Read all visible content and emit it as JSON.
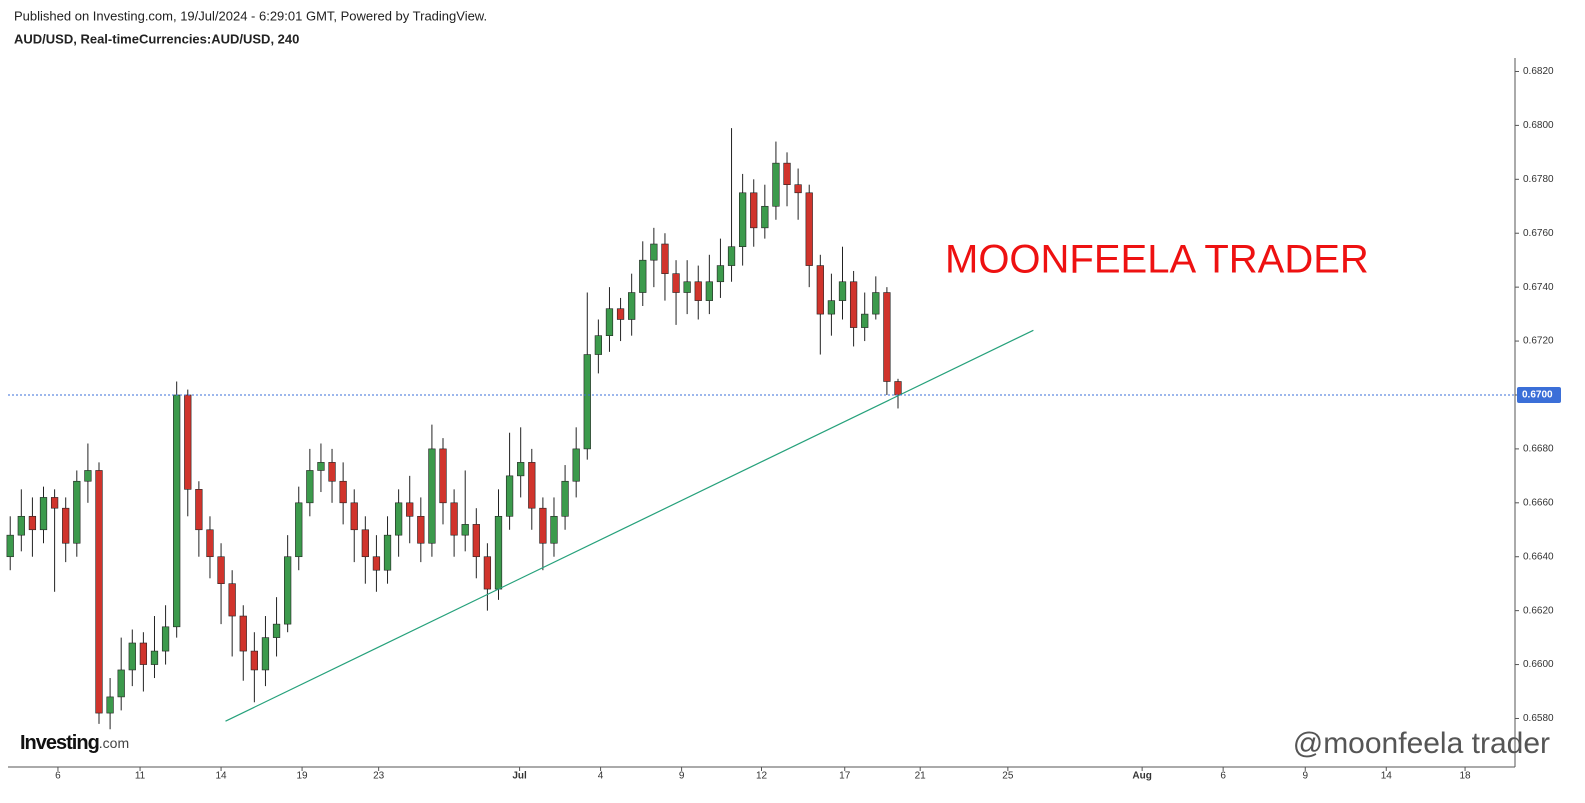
{
  "chart_data": {
    "type": "candlestick",
    "published": "Published on Investing.com, 19/Jul/2024 - 6:29:01 GMT, Powered by TradingView.",
    "title": "AUD/USD, Real-timeCurrencies:AUD/USD, 240",
    "watermark": "MOONFEELA TRADER",
    "logo": {
      "brand": "Investing",
      "suffix": ".com"
    },
    "credit": "@moonfeela trader",
    "up_color": "#3c9a4c",
    "down_color": "#d0342c",
    "trendline_color": "#26a17b",
    "price_line_color": "#3b6fd8",
    "open": [
      0.664,
      0.6648,
      0.6655,
      0.665,
      0.6662,
      0.6658,
      0.6645,
      0.6668,
      0.6672,
      0.6582,
      0.6588,
      0.6598,
      0.6608,
      0.66,
      0.6605,
      0.6614,
      0.67,
      0.6665,
      0.665,
      0.664,
      0.663,
      0.6618,
      0.6605,
      0.6598,
      0.661,
      0.6615,
      0.664,
      0.666,
      0.6672,
      0.6675,
      0.6668,
      0.666,
      0.665,
      0.664,
      0.6635,
      0.6648,
      0.666,
      0.6655,
      0.6645,
      0.668,
      0.666,
      0.6648,
      0.6652,
      0.664,
      0.6628,
      0.6655,
      0.667,
      0.6675,
      0.6658,
      0.6645,
      0.6655,
      0.6668,
      0.668,
      0.6715,
      0.6722,
      0.6732,
      0.6728,
      0.6738,
      0.675,
      0.6756,
      0.6745,
      0.6738,
      0.6742,
      0.6735,
      0.6742,
      0.6748,
      0.6755,
      0.6775,
      0.6762,
      0.677,
      0.6786,
      0.6778,
      0.6775,
      0.6748,
      0.673,
      0.6735,
      0.6742,
      0.6725,
      0.673,
      0.6738,
      0.6705
    ],
    "high": [
      0.6655,
      0.6665,
      0.6662,
      0.6666,
      0.6665,
      0.6662,
      0.6672,
      0.6682,
      0.6675,
      0.6595,
      0.661,
      0.6613,
      0.6612,
      0.6618,
      0.6622,
      0.6705,
      0.6702,
      0.6668,
      0.6655,
      0.6645,
      0.6635,
      0.6622,
      0.6612,
      0.6618,
      0.6625,
      0.6648,
      0.6666,
      0.668,
      0.6682,
      0.668,
      0.6675,
      0.6665,
      0.6655,
      0.6648,
      0.6655,
      0.6665,
      0.667,
      0.6662,
      0.6689,
      0.6684,
      0.6665,
      0.6672,
      0.6658,
      0.6645,
      0.6665,
      0.6686,
      0.6688,
      0.668,
      0.6662,
      0.6662,
      0.6674,
      0.6688,
      0.6738,
      0.6728,
      0.674,
      0.6736,
      0.6745,
      0.6757,
      0.6762,
      0.676,
      0.675,
      0.675,
      0.6748,
      0.6752,
      0.6758,
      0.6799,
      0.6782,
      0.678,
      0.6778,
      0.6794,
      0.679,
      0.6784,
      0.6778,
      0.6752,
      0.6745,
      0.6755,
      0.6746,
      0.6738,
      0.6744,
      0.674,
      0.6706
    ],
    "low": [
      0.6635,
      0.6642,
      0.664,
      0.6645,
      0.6627,
      0.6638,
      0.664,
      0.666,
      0.6578,
      0.6576,
      0.6583,
      0.6592,
      0.659,
      0.6595,
      0.66,
      0.661,
      0.6655,
      0.664,
      0.6632,
      0.6615,
      0.6603,
      0.6594,
      0.6586,
      0.6592,
      0.6603,
      0.6612,
      0.6635,
      0.6655,
      0.6664,
      0.666,
      0.6652,
      0.6638,
      0.663,
      0.6627,
      0.663,
      0.664,
      0.6645,
      0.6638,
      0.664,
      0.6652,
      0.664,
      0.6642,
      0.6632,
      0.662,
      0.6624,
      0.665,
      0.6662,
      0.665,
      0.6635,
      0.664,
      0.665,
      0.6662,
      0.6676,
      0.6708,
      0.6716,
      0.672,
      0.6722,
      0.6733,
      0.674,
      0.6735,
      0.6726,
      0.673,
      0.6728,
      0.673,
      0.6736,
      0.6742,
      0.6748,
      0.6755,
      0.6758,
      0.6765,
      0.677,
      0.6765,
      0.674,
      0.6715,
      0.6722,
      0.6728,
      0.6718,
      0.672,
      0.6728,
      0.67,
      0.6695
    ],
    "close": [
      0.6648,
      0.6655,
      0.665,
      0.6662,
      0.6658,
      0.6645,
      0.6668,
      0.6672,
      0.6582,
      0.6588,
      0.6598,
      0.6608,
      0.66,
      0.6605,
      0.6614,
      0.67,
      0.6665,
      0.665,
      0.664,
      0.663,
      0.6618,
      0.6605,
      0.6598,
      0.661,
      0.6615,
      0.664,
      0.666,
      0.6672,
      0.6675,
      0.6668,
      0.666,
      0.665,
      0.664,
      0.6635,
      0.6648,
      0.666,
      0.6655,
      0.6645,
      0.668,
      0.666,
      0.6648,
      0.6652,
      0.664,
      0.6628,
      0.6655,
      0.667,
      0.6675,
      0.6658,
      0.6645,
      0.6655,
      0.6668,
      0.668,
      0.6715,
      0.6722,
      0.6732,
      0.6728,
      0.6738,
      0.675,
      0.6756,
      0.6745,
      0.6738,
      0.6742,
      0.6735,
      0.6742,
      0.6748,
      0.6755,
      0.6775,
      0.6762,
      0.677,
      0.6786,
      0.6778,
      0.6775,
      0.6748,
      0.673,
      0.6735,
      0.6742,
      0.6725,
      0.673,
      0.6738,
      0.6705,
      0.67
    ],
    "xlim": [
      -0.2,
      135.6
    ],
    "xticks": [
      {
        "value": 4.3,
        "label": "6"
      },
      {
        "value": 11.7,
        "label": "11"
      },
      {
        "value": 19.0,
        "label": "14"
      },
      {
        "value": 26.3,
        "label": "19"
      },
      {
        "value": 33.2,
        "label": "23"
      },
      {
        "value": 45.9,
        "label": "Jul"
      },
      {
        "value": 53.2,
        "label": "4"
      },
      {
        "value": 60.5,
        "label": "9"
      },
      {
        "value": 67.7,
        "label": "12"
      },
      {
        "value": 75.2,
        "label": "17"
      },
      {
        "value": 82.0,
        "label": "21"
      },
      {
        "value": 89.9,
        "label": "25"
      },
      {
        "value": 102.0,
        "label": "Aug"
      },
      {
        "value": 109.3,
        "label": "6"
      },
      {
        "value": 116.7,
        "label": "9"
      },
      {
        "value": 124.0,
        "label": "14"
      },
      {
        "value": 131.1,
        "label": "18"
      }
    ],
    "ylim": [
      0.6562,
      0.6825
    ],
    "yticks": [
      {
        "value": 0.658,
        "label": "0.6580"
      },
      {
        "value": 0.66,
        "label": "0.6600"
      },
      {
        "value": 0.662,
        "label": "0.6620"
      },
      {
        "value": 0.664,
        "label": "0.6640"
      },
      {
        "value": 0.666,
        "label": "0.6660"
      },
      {
        "value": 0.668,
        "label": "0.6680"
      },
      {
        "value": 0.67,
        "label": "0.6700"
      },
      {
        "value": 0.672,
        "label": "0.6720"
      },
      {
        "value": 0.674,
        "label": "0.6740"
      },
      {
        "value": 0.676,
        "label": "0.6760"
      },
      {
        "value": 0.678,
        "label": "0.6780"
      },
      {
        "value": 0.68,
        "label": "0.6800"
      },
      {
        "value": 0.682,
        "label": "0.6820"
      }
    ],
    "current_price": {
      "value": 0.67,
      "label": "0.6700"
    },
    "trendline": {
      "x": [
        19.4,
        92.2
      ],
      "y": [
        0.6579,
        0.6724
      ]
    }
  }
}
